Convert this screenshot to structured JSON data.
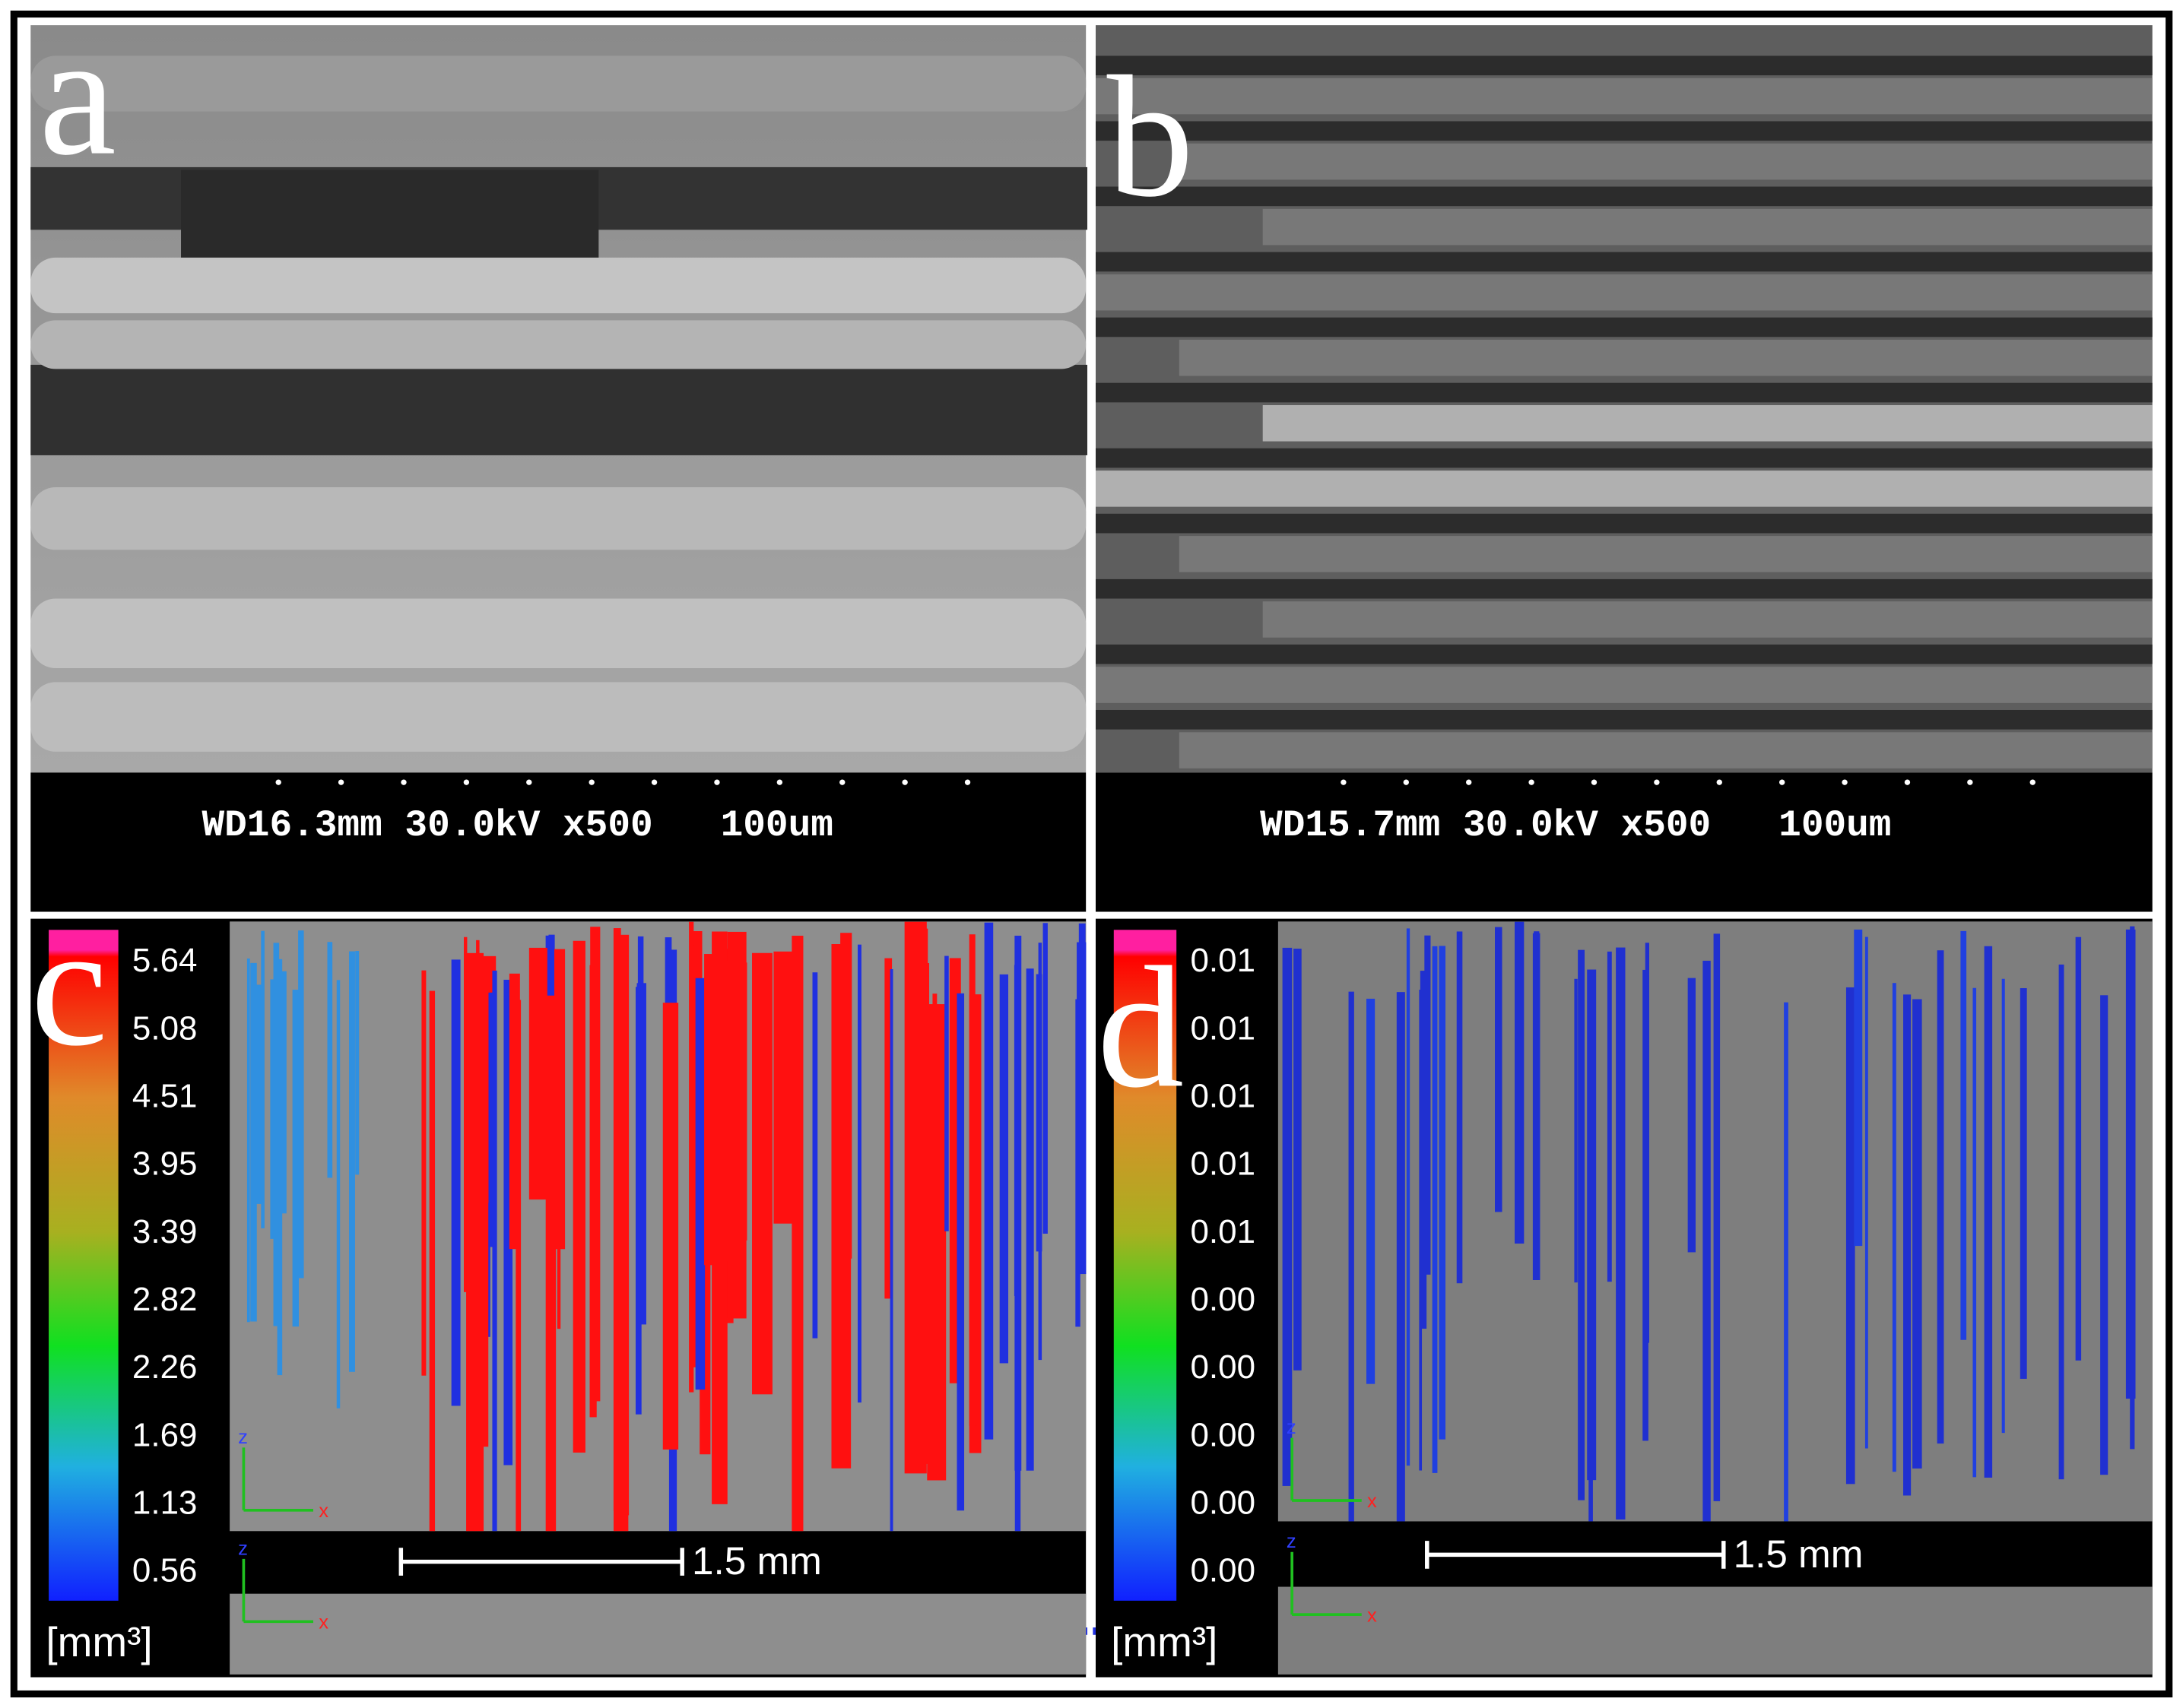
{
  "panels": [
    {
      "label": "a",
      "info": "WD16.3mm 30.0kV x500   100um"
    },
    {
      "label": "b",
      "info": "WD15.7mm 30.0kV x500   100um"
    },
    {
      "label": "c",
      "colorbar_ticks": [
        "5.64",
        "5.08",
        "4.51",
        "3.95",
        "3.39",
        "2.82",
        "2.26",
        "1.69",
        "1.13",
        "0.56"
      ],
      "unit": "[mm³]",
      "scale_bar": "1.5 mm",
      "axis_labels": [
        "z",
        "x"
      ]
    },
    {
      "label": "d",
      "colorbar_ticks": [
        "0.01",
        "0.01",
        "0.01",
        "0.01",
        "0.01",
        "0.00",
        "0.00",
        "0.00",
        "0.00",
        "0.00"
      ],
      "unit": "[mm³]",
      "scale_bar": "1.5 mm",
      "axis_labels": [
        "z",
        "x"
      ]
    }
  ]
}
